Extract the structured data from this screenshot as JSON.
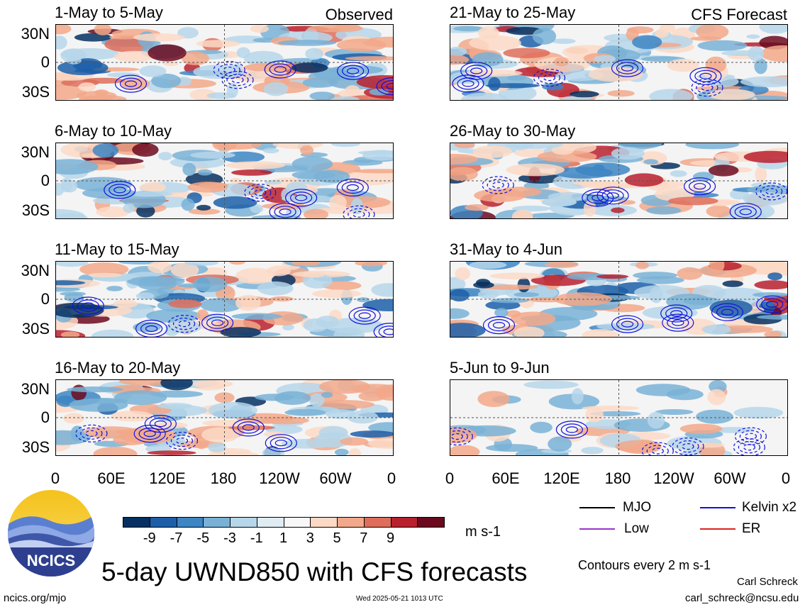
{
  "figure_title": "5-day UWND850 with CFS forecasts",
  "observed_label": "Observed",
  "forecast_label": "CFS Forecast",
  "units_label": "m s-1",
  "contour_note": "Contours every 2 m s-1",
  "author": "Carl Schreck",
  "email": "carl_schreck@ncsu.edu",
  "site": "ncics.org/mjo",
  "timestamp": "Wed 2025-05-21 1013 UTC",
  "logo_text": "NCICS",
  "legend": [
    {
      "label": "MJO",
      "color": "#000000"
    },
    {
      "label": "Kelvin x2",
      "color": "#1111dd"
    },
    {
      "label": "Low",
      "color": "#9933cc"
    },
    {
      "label": "ER",
      "color": "#dd2222"
    }
  ],
  "colorbar": {
    "labels": [
      "-9",
      "-7",
      "-5",
      "-3",
      "-1",
      "1",
      "3",
      "5",
      "7",
      "9"
    ],
    "colors": [
      "#053061",
      "#1c5fa8",
      "#3d85c3",
      "#79b1d6",
      "#b6d6ea",
      "#e0ecf4",
      "#f7f7f7",
      "#fbd9c5",
      "#f2a88a",
      "#de6d5a",
      "#b8202e",
      "#6b0a1f"
    ]
  },
  "chart_data": {
    "type": "heatmap",
    "variable": "UWND850",
    "units": "m s-1",
    "x_tick_labels": [
      "0",
      "60E",
      "120E",
      "180",
      "120W",
      "60W",
      "0"
    ],
    "y_tick_labels": [
      "30N",
      "0",
      "30S"
    ],
    "panels": [
      {
        "period": "1-May to 5-May",
        "source": "Observed"
      },
      {
        "period": "6-May to 10-May",
        "source": "Observed"
      },
      {
        "period": "11-May to 15-May",
        "source": "Observed"
      },
      {
        "period": "16-May to 20-May",
        "source": "Observed"
      },
      {
        "period": "21-May to 25-May",
        "source": "CFS Forecast"
      },
      {
        "period": "26-May to 30-May",
        "source": "CFS Forecast"
      },
      {
        "period": "31-May to 4-Jun",
        "source": "CFS Forecast"
      },
      {
        "period": "5-Jun to 9-Jun",
        "source": "CFS Forecast"
      }
    ]
  }
}
